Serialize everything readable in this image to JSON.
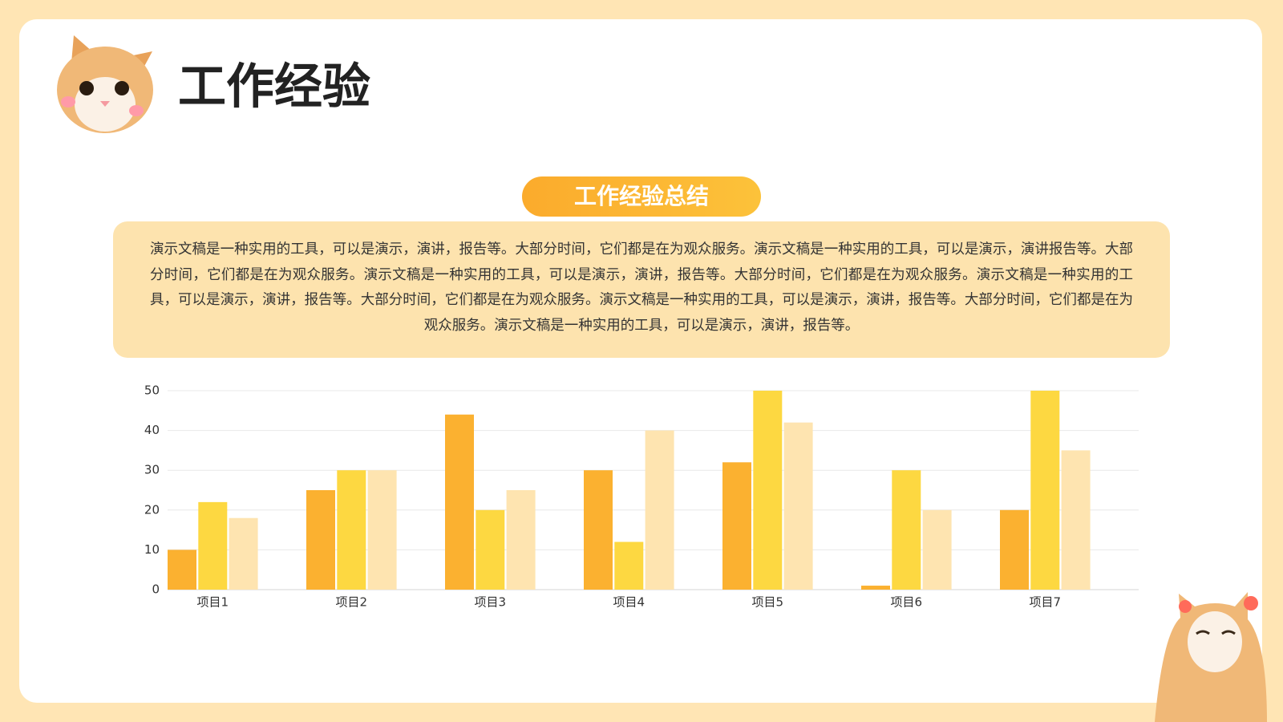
{
  "header": {
    "title": "工作经验"
  },
  "section": {
    "label": "工作经验总结",
    "text": "演示文稿是一种实用的工具，可以是演示，演讲，报告等。大部分时间，它们都是在为观众服务。演示文稿是一种实用的工具，可以是演示，演讲报告等。大部分时间，它们都是在为观众服务。演示文稿是一种实用的工具，可以是演示，演讲，报告等。大部分时间，它们都是在为观众服务。演示文稿是一种实用的工具，可以是演示，演讲，报告等。大部分时间，它们都是在为观众服务。演示文稿是一种实用的工具，可以是演示，演讲，报告等。大部分时间，它们都是在为观众服务。演示文稿是一种实用的工具，可以是演示，演讲，报告等。"
  },
  "chart_data": {
    "type": "bar",
    "categories": [
      "项目1",
      "项目2",
      "项目3",
      "项目4",
      "项目5",
      "项目6",
      "项目7"
    ],
    "series": [
      {
        "color": "#fbb130",
        "values": [
          10,
          25,
          44,
          30,
          32,
          1,
          20
        ]
      },
      {
        "color": "#fdd841",
        "values": [
          22,
          30,
          20,
          12,
          50,
          30,
          50
        ]
      },
      {
        "color": "#fee4b0",
        "values": [
          18,
          30,
          25,
          40,
          42,
          20,
          35
        ]
      }
    ],
    "ylim": [
      0,
      50
    ],
    "yticks": [
      0,
      10,
      20,
      30,
      40,
      50
    ],
    "grid": true
  }
}
